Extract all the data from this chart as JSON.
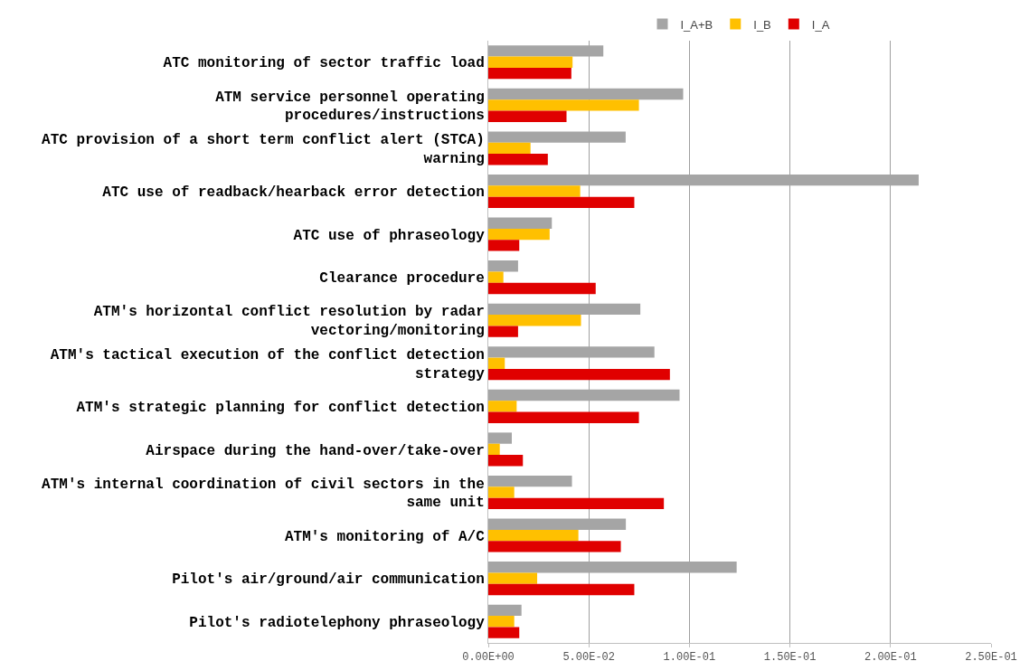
{
  "chart_data": {
    "type": "bar",
    "orientation": "horizontal",
    "categories": [
      "ATC monitoring of sector traffic load",
      "ATM service personnel operating procedures/instructions",
      "ATC provision of a short term conflict alert (STCA) warning",
      "ATC use of readback/hearback error detection",
      "ATC use of phraseology",
      "Clearance procedure",
      "ATM's horizontal conflict resolution by radar vectoring/monitoring",
      "ATM's tactical execution of the conflict detection strategy",
      "ATM's strategic planning for conflict detection",
      "Airspace during the hand-over/take-over",
      "ATM's internal coordination of civil sectors in the same unit",
      "ATM's monitoring of A/C",
      "Pilot's air/ground/air communication",
      "Pilot's radiotelephony phraseology"
    ],
    "series": [
      {
        "name": "I_A+B",
        "color": "#a5a5a5",
        "values": [
          0.0572,
          0.0969,
          0.0683,
          0.214,
          0.0316,
          0.0148,
          0.0756,
          0.0826,
          0.0951,
          0.0117,
          0.0416,
          0.0684,
          0.1235,
          0.0165
        ]
      },
      {
        "name": "I_B",
        "color": "#ffc000",
        "values": [
          0.0419,
          0.0749,
          0.021,
          0.0457,
          0.0305,
          0.0075,
          0.0461,
          0.0082,
          0.0141,
          0.0057,
          0.0129,
          0.0448,
          0.0243,
          0.0129
        ]
      },
      {
        "name": "I_A",
        "color": "#e00000",
        "values": [
          0.0413,
          0.0389,
          0.0296,
          0.0726,
          0.0154,
          0.0534,
          0.0148,
          0.0903,
          0.0749,
          0.0172,
          0.0873,
          0.0659,
          0.0726,
          0.0154
        ]
      }
    ],
    "xlim": [
      0,
      0.25
    ],
    "xticks": [
      {
        "value": 0,
        "label": "0.00E+00"
      },
      {
        "value": 0.05,
        "label": "5.00E-02"
      },
      {
        "value": 0.1,
        "label": "1.00E-01"
      },
      {
        "value": 0.15,
        "label": "1.50E-01"
      },
      {
        "value": 0.2,
        "label": "2.00E-01"
      },
      {
        "value": 0.25,
        "label": "2.50E-01"
      }
    ],
    "grid": "x",
    "legend": "top"
  }
}
